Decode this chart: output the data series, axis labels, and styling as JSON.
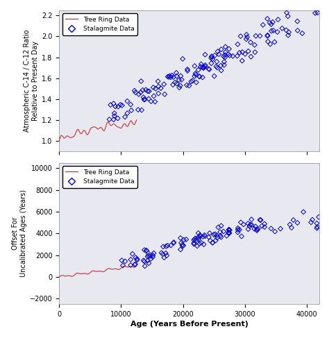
{
  "top_panel": {
    "ylabel": "Atmospheric C-14 / C-12 Ratio\nRelative to Present Day",
    "ylim": [
      0.9,
      2.25
    ],
    "yticks": [
      1.0,
      1.2,
      1.4,
      1.6,
      1.8,
      2.0,
      2.2
    ],
    "xlim": [
      0,
      42000
    ],
    "xticks": [
      0,
      10000,
      20000,
      30000,
      40000
    ]
  },
  "bottom_panel": {
    "ylabel": "Offset For\nUncalibrated Ages (Years)",
    "xlabel": "Age (Years Before Present)",
    "ylim": [
      -2500,
      10500
    ],
    "yticks": [
      -2000,
      0,
      2000,
      4000,
      6000,
      8000,
      10000
    ],
    "xlim": [
      0,
      42000
    ],
    "xticks": [
      0,
      10000,
      20000,
      30000,
      40000
    ]
  },
  "tree_ring_color": "#cc4444",
  "stalagmite_color": "#0000cc",
  "background_color": "#e8e8f0",
  "legend_labels": [
    "Tree Ring Data",
    "Stalagmite Data"
  ]
}
